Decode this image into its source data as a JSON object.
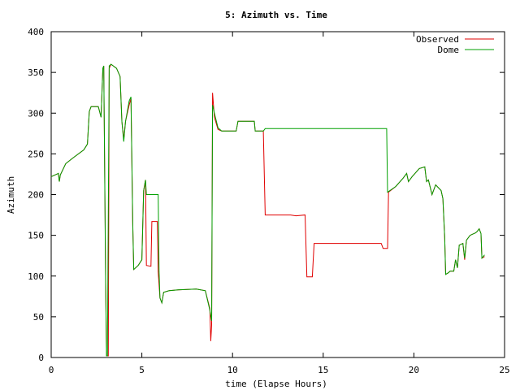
{
  "chart_data": {
    "type": "line",
    "title": "5: Azimuth vs. Time",
    "xlabel": "time (Elapse Hours)",
    "ylabel": "Azimuth",
    "xlim": [
      0,
      25
    ],
    "ylim": [
      0,
      400
    ],
    "xticks": [
      0,
      5,
      10,
      15,
      20,
      25
    ],
    "yticks": [
      0,
      50,
      100,
      150,
      200,
      250,
      300,
      350,
      400
    ],
    "grid": false,
    "legend_position": "top-right",
    "series": [
      {
        "name": "Observed",
        "color": "#e00000",
        "points": [
          [
            0,
            222
          ],
          [
            0.3,
            225
          ],
          [
            0.4,
            226
          ],
          [
            0.45,
            216
          ],
          [
            0.5,
            224
          ],
          [
            0.8,
            238
          ],
          [
            1.2,
            245
          ],
          [
            1.8,
            255
          ],
          [
            2.0,
            262
          ],
          [
            2.1,
            302
          ],
          [
            2.2,
            308
          ],
          [
            2.6,
            308
          ],
          [
            2.75,
            295
          ],
          [
            2.85,
            355
          ],
          [
            2.9,
            358
          ],
          [
            3.0,
            100
          ],
          [
            3.05,
            2
          ],
          [
            3.15,
            2
          ],
          [
            3.2,
            355
          ],
          [
            3.3,
            360
          ],
          [
            3.6,
            355
          ],
          [
            3.8,
            345
          ],
          [
            3.9,
            290
          ],
          [
            4.0,
            268
          ],
          [
            4.1,
            290
          ],
          [
            4.3,
            310
          ],
          [
            4.4,
            318
          ],
          [
            4.5,
            162
          ],
          [
            4.55,
            108
          ],
          [
            4.8,
            113
          ],
          [
            5.0,
            120
          ],
          [
            5.1,
            205
          ],
          [
            5.2,
            218
          ],
          [
            5.25,
            113
          ],
          [
            5.5,
            112
          ],
          [
            5.55,
            167
          ],
          [
            5.85,
            167
          ],
          [
            5.9,
            105
          ],
          [
            6.0,
            73
          ],
          [
            6.1,
            67
          ],
          [
            6.2,
            80
          ],
          [
            6.5,
            82
          ],
          [
            7.0,
            83
          ],
          [
            8.0,
            84
          ],
          [
            8.5,
            82
          ],
          [
            8.75,
            60
          ],
          [
            8.8,
            20
          ],
          [
            8.85,
            40
          ],
          [
            8.9,
            325
          ],
          [
            9.0,
            295
          ],
          [
            9.2,
            280
          ],
          [
            9.4,
            278
          ],
          [
            10.2,
            278
          ],
          [
            10.3,
            290
          ],
          [
            11.2,
            290
          ],
          [
            11.25,
            278
          ],
          [
            11.7,
            278
          ],
          [
            11.8,
            175
          ],
          [
            13.2,
            175
          ],
          [
            13.5,
            174
          ],
          [
            14.0,
            175
          ],
          [
            14.1,
            99
          ],
          [
            14.4,
            99
          ],
          [
            14.5,
            140
          ],
          [
            18.2,
            140
          ],
          [
            18.3,
            134
          ],
          [
            18.55,
            134
          ],
          [
            18.6,
            203
          ],
          [
            19.0,
            210
          ],
          [
            19.4,
            220
          ],
          [
            19.6,
            226
          ],
          [
            19.7,
            216
          ],
          [
            19.9,
            222
          ],
          [
            20.3,
            232
          ],
          [
            20.6,
            234
          ],
          [
            20.7,
            216
          ],
          [
            20.8,
            218
          ],
          [
            21.0,
            200
          ],
          [
            21.2,
            212
          ],
          [
            21.5,
            205
          ],
          [
            21.6,
            195
          ],
          [
            21.7,
            148
          ],
          [
            21.75,
            102
          ],
          [
            21.9,
            104
          ],
          [
            22.0,
            106
          ],
          [
            22.2,
            106
          ],
          [
            22.3,
            120
          ],
          [
            22.4,
            110
          ],
          [
            22.5,
            138
          ],
          [
            22.7,
            140
          ],
          [
            22.8,
            120
          ],
          [
            22.9,
            144
          ],
          [
            23.1,
            150
          ],
          [
            23.4,
            153
          ],
          [
            23.5,
            155
          ],
          [
            23.6,
            158
          ],
          [
            23.7,
            152
          ],
          [
            23.75,
            122
          ],
          [
            23.9,
            124
          ]
        ]
      },
      {
        "name": "Dome",
        "color": "#00a000",
        "points": [
          [
            0,
            222
          ],
          [
            0.3,
            225
          ],
          [
            0.4,
            226
          ],
          [
            0.45,
            216
          ],
          [
            0.5,
            224
          ],
          [
            0.8,
            238
          ],
          [
            1.2,
            245
          ],
          [
            1.8,
            255
          ],
          [
            2.0,
            262
          ],
          [
            2.1,
            302
          ],
          [
            2.2,
            308
          ],
          [
            2.6,
            308
          ],
          [
            2.75,
            295
          ],
          [
            2.85,
            355
          ],
          [
            2.9,
            358
          ],
          [
            3.0,
            92
          ],
          [
            3.05,
            2
          ],
          [
            3.1,
            2
          ],
          [
            3.2,
            358
          ],
          [
            3.3,
            360
          ],
          [
            3.6,
            355
          ],
          [
            3.8,
            345
          ],
          [
            3.9,
            290
          ],
          [
            4.0,
            265
          ],
          [
            4.1,
            290
          ],
          [
            4.3,
            315
          ],
          [
            4.4,
            320
          ],
          [
            4.5,
            165
          ],
          [
            4.55,
            108
          ],
          [
            4.8,
            113
          ],
          [
            5.0,
            120
          ],
          [
            5.1,
            205
          ],
          [
            5.2,
            218
          ],
          [
            5.25,
            200
          ],
          [
            5.9,
            200
          ],
          [
            5.95,
            105
          ],
          [
            6.0,
            73
          ],
          [
            6.1,
            67
          ],
          [
            6.2,
            80
          ],
          [
            6.5,
            82
          ],
          [
            7.0,
            83
          ],
          [
            8.0,
            84
          ],
          [
            8.5,
            82
          ],
          [
            8.75,
            58
          ],
          [
            8.85,
            45
          ],
          [
            8.9,
            310
          ],
          [
            9.0,
            300
          ],
          [
            9.2,
            282
          ],
          [
            9.4,
            278
          ],
          [
            10.2,
            278
          ],
          [
            10.3,
            290
          ],
          [
            11.2,
            290
          ],
          [
            11.25,
            278
          ],
          [
            11.7,
            278
          ],
          [
            11.8,
            281
          ],
          [
            18.5,
            281
          ],
          [
            18.55,
            203
          ],
          [
            19.0,
            210
          ],
          [
            19.4,
            220
          ],
          [
            19.6,
            226
          ],
          [
            19.7,
            216
          ],
          [
            19.9,
            222
          ],
          [
            20.3,
            232
          ],
          [
            20.6,
            234
          ],
          [
            20.7,
            216
          ],
          [
            20.8,
            218
          ],
          [
            21.0,
            200
          ],
          [
            21.2,
            212
          ],
          [
            21.5,
            205
          ],
          [
            21.6,
            195
          ],
          [
            21.7,
            148
          ],
          [
            21.75,
            102
          ],
          [
            21.9,
            104
          ],
          [
            22.0,
            106
          ],
          [
            22.2,
            106
          ],
          [
            22.3,
            120
          ],
          [
            22.4,
            110
          ],
          [
            22.5,
            138
          ],
          [
            22.7,
            140
          ],
          [
            22.8,
            122
          ],
          [
            22.9,
            144
          ],
          [
            23.1,
            150
          ],
          [
            23.4,
            153
          ],
          [
            23.5,
            155
          ],
          [
            23.6,
            158
          ],
          [
            23.7,
            152
          ],
          [
            23.75,
            122
          ],
          [
            23.9,
            126
          ]
        ]
      }
    ]
  }
}
